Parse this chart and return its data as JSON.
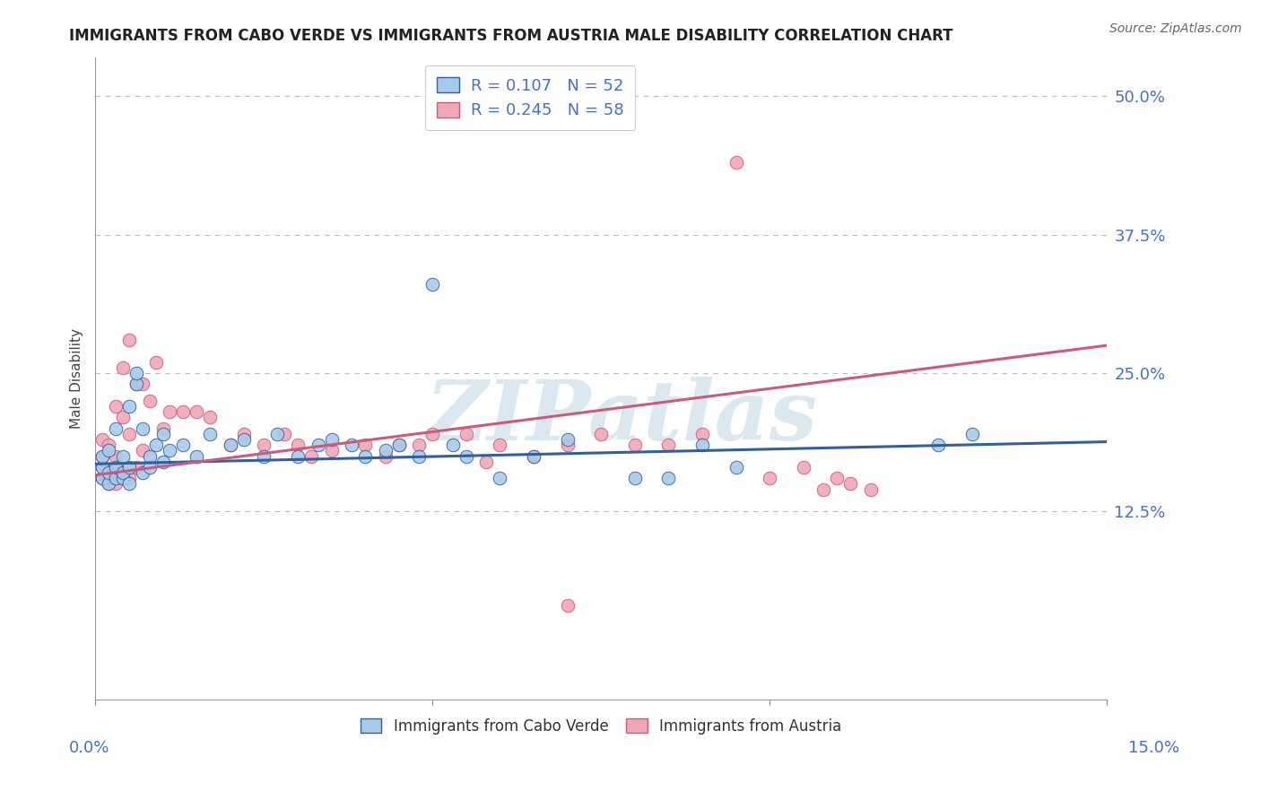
{
  "title": "IMMIGRANTS FROM CABO VERDE VS IMMIGRANTS FROM AUSTRIA MALE DISABILITY CORRELATION CHART",
  "source": "Source: ZipAtlas.com",
  "ylabel": "Male Disability",
  "y_ticks": [
    0.0,
    0.125,
    0.25,
    0.375,
    0.5
  ],
  "y_tick_labels": [
    "",
    "12.5%",
    "25.0%",
    "37.5%",
    "50.0%"
  ],
  "x_range": [
    0.0,
    0.15
  ],
  "y_range": [
    -0.045,
    0.535
  ],
  "cabo_verde_R": 0.107,
  "cabo_verde_N": 52,
  "austria_R": 0.245,
  "austria_N": 58,
  "color_cabo_verde": "#A8CAEA",
  "color_austria": "#F0A8B8",
  "color_line_cabo_verde": "#3060A0",
  "color_line_austria": "#D05878",
  "watermark_color": "#DCE8F0",
  "cabo_verde_x": [
    0.001,
    0.001,
    0.001,
    0.002,
    0.002,
    0.002,
    0.003,
    0.003,
    0.003,
    0.004,
    0.004,
    0.004,
    0.005,
    0.005,
    0.005,
    0.006,
    0.006,
    0.007,
    0.007,
    0.008,
    0.008,
    0.009,
    0.01,
    0.01,
    0.011,
    0.013,
    0.015,
    0.017,
    0.02,
    0.022,
    0.025,
    0.027,
    0.03,
    0.033,
    0.035,
    0.038,
    0.04,
    0.043,
    0.045,
    0.048,
    0.05,
    0.053,
    0.055,
    0.06,
    0.065,
    0.07,
    0.08,
    0.085,
    0.09,
    0.095,
    0.125,
    0.13
  ],
  "cabo_verde_y": [
    0.155,
    0.165,
    0.175,
    0.15,
    0.16,
    0.18,
    0.155,
    0.165,
    0.2,
    0.155,
    0.16,
    0.175,
    0.15,
    0.165,
    0.22,
    0.24,
    0.25,
    0.16,
    0.2,
    0.165,
    0.175,
    0.185,
    0.17,
    0.195,
    0.18,
    0.185,
    0.175,
    0.195,
    0.185,
    0.19,
    0.175,
    0.195,
    0.175,
    0.185,
    0.19,
    0.185,
    0.175,
    0.18,
    0.185,
    0.175,
    0.33,
    0.185,
    0.175,
    0.155,
    0.175,
    0.19,
    0.155,
    0.155,
    0.185,
    0.165,
    0.185,
    0.195
  ],
  "austria_x": [
    0.001,
    0.001,
    0.001,
    0.001,
    0.002,
    0.002,
    0.002,
    0.002,
    0.003,
    0.003,
    0.003,
    0.003,
    0.004,
    0.004,
    0.004,
    0.005,
    0.005,
    0.005,
    0.006,
    0.006,
    0.007,
    0.007,
    0.008,
    0.009,
    0.01,
    0.011,
    0.013,
    0.015,
    0.017,
    0.02,
    0.022,
    0.025,
    0.028,
    0.03,
    0.032,
    0.035,
    0.04,
    0.043,
    0.045,
    0.048,
    0.05,
    0.055,
    0.058,
    0.06,
    0.065,
    0.07,
    0.075,
    0.08,
    0.085,
    0.09,
    0.095,
    0.1,
    0.105,
    0.108,
    0.11,
    0.112,
    0.115,
    0.07
  ],
  "austria_y": [
    0.155,
    0.165,
    0.175,
    0.19,
    0.15,
    0.16,
    0.155,
    0.185,
    0.15,
    0.165,
    0.175,
    0.22,
    0.16,
    0.21,
    0.255,
    0.155,
    0.195,
    0.28,
    0.165,
    0.24,
    0.18,
    0.24,
    0.225,
    0.26,
    0.2,
    0.215,
    0.215,
    0.215,
    0.21,
    0.185,
    0.195,
    0.185,
    0.195,
    0.185,
    0.175,
    0.18,
    0.185,
    0.175,
    0.185,
    0.185,
    0.195,
    0.195,
    0.17,
    0.185,
    0.175,
    0.185,
    0.195,
    0.185,
    0.185,
    0.195,
    0.44,
    0.155,
    0.165,
    0.145,
    0.155,
    0.15,
    0.145,
    0.04
  ],
  "cv_line_x0": 0.0,
  "cv_line_x1": 0.15,
  "cv_line_y0": 0.168,
  "cv_line_y1": 0.188,
  "at_line_x0": 0.0,
  "at_line_x1": 0.15,
  "at_line_y0": 0.158,
  "at_line_y1": 0.275
}
